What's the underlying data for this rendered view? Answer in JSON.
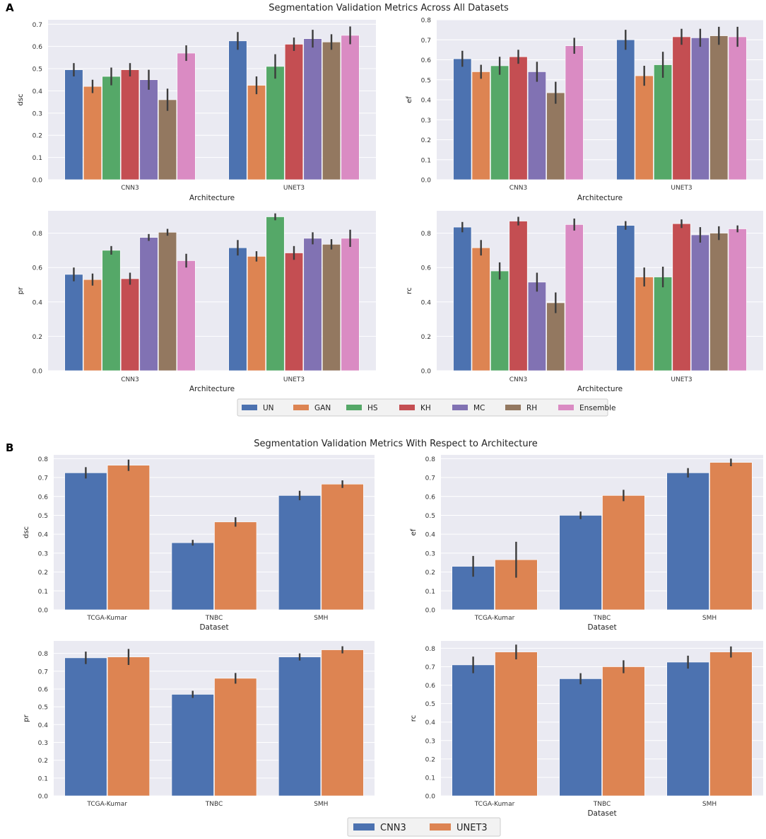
{
  "panels": {
    "a": {
      "label": "A",
      "title": "Segmentation Validation Metrics Across All Datasets"
    },
    "b": {
      "label": "B",
      "title": "Segmentation Validation Metrics With Respect to Architecture"
    }
  },
  "legend_a": {
    "entries": [
      {
        "label": "UN",
        "color": "#4c72b0"
      },
      {
        "label": "GAN",
        "color": "#dd8452"
      },
      {
        "label": "HS",
        "color": "#55a868"
      },
      {
        "label": "KH",
        "color": "#c44e52"
      },
      {
        "label": "MC",
        "color": "#8172b3"
      },
      {
        "label": "RH",
        "color": "#937860"
      },
      {
        "label": "Ensemble",
        "color": "#da8bc3"
      }
    ]
  },
  "legend_b": {
    "entries": [
      {
        "label": "CNN3",
        "color": "#4c72b0"
      },
      {
        "label": "UNET3",
        "color": "#dd8452"
      }
    ]
  },
  "chart_data": [
    {
      "id": "a1",
      "type": "bar",
      "title": "",
      "xlabel": "Architecture",
      "ylabel": "dsc",
      "ylim": [
        0,
        0.72
      ],
      "yticks": [
        0,
        0.1,
        0.2,
        0.3,
        0.4,
        0.5,
        0.6,
        0.7
      ],
      "tick_decimals": 1,
      "categories": [
        "CNN3",
        "UNET3"
      ],
      "series": [
        {
          "name": "UN",
          "values": [
            0.495,
            0.625
          ],
          "err": [
            0.03,
            0.04
          ]
        },
        {
          "name": "GAN",
          "values": [
            0.42,
            0.425
          ],
          "err": [
            0.03,
            0.04
          ]
        },
        {
          "name": "HS",
          "values": [
            0.465,
            0.51
          ],
          "err": [
            0.04,
            0.055
          ]
        },
        {
          "name": "KH",
          "values": [
            0.495,
            0.61
          ],
          "err": [
            0.03,
            0.03
          ]
        },
        {
          "name": "MC",
          "values": [
            0.45,
            0.635
          ],
          "err": [
            0.045,
            0.04
          ]
        },
        {
          "name": "RH",
          "values": [
            0.36,
            0.62
          ],
          "err": [
            0.05,
            0.035
          ]
        },
        {
          "name": "Ensemble",
          "values": [
            0.57,
            0.65
          ],
          "err": [
            0.035,
            0.04
          ]
        }
      ]
    },
    {
      "id": "a2",
      "type": "bar",
      "title": "",
      "xlabel": "Architecture",
      "ylabel": "ef",
      "ylim": [
        0,
        0.8
      ],
      "yticks": [
        0,
        0.1,
        0.2,
        0.3,
        0.4,
        0.5,
        0.6,
        0.7,
        0.8
      ],
      "tick_decimals": 1,
      "categories": [
        "CNN3",
        "UNET3"
      ],
      "series": [
        {
          "name": "UN",
          "values": [
            0.605,
            0.7
          ],
          "err": [
            0.04,
            0.05
          ]
        },
        {
          "name": "GAN",
          "values": [
            0.54,
            0.52
          ],
          "err": [
            0.035,
            0.05
          ]
        },
        {
          "name": "HS",
          "values": [
            0.57,
            0.575
          ],
          "err": [
            0.045,
            0.065
          ]
        },
        {
          "name": "KH",
          "values": [
            0.615,
            0.715
          ],
          "err": [
            0.035,
            0.04
          ]
        },
        {
          "name": "MC",
          "values": [
            0.54,
            0.71
          ],
          "err": [
            0.05,
            0.045
          ]
        },
        {
          "name": "RH",
          "values": [
            0.435,
            0.72
          ],
          "err": [
            0.055,
            0.045
          ]
        },
        {
          "name": "Ensemble",
          "values": [
            0.67,
            0.715
          ],
          "err": [
            0.04,
            0.05
          ]
        }
      ]
    },
    {
      "id": "a3",
      "type": "bar",
      "title": "",
      "xlabel": "Architecture",
      "ylabel": "pr",
      "ylim": [
        0,
        0.93
      ],
      "yticks": [
        0,
        0.2,
        0.4,
        0.6,
        0.8
      ],
      "tick_decimals": 1,
      "categories": [
        "CNN3",
        "UNET3"
      ],
      "series": [
        {
          "name": "UN",
          "values": [
            0.56,
            0.715
          ],
          "err": [
            0.04,
            0.045
          ]
        },
        {
          "name": "GAN",
          "values": [
            0.53,
            0.665
          ],
          "err": [
            0.035,
            0.03
          ]
        },
        {
          "name": "HS",
          "values": [
            0.7,
            0.895
          ],
          "err": [
            0.025,
            0.02
          ]
        },
        {
          "name": "KH",
          "values": [
            0.535,
            0.685
          ],
          "err": [
            0.035,
            0.04
          ]
        },
        {
          "name": "MC",
          "values": [
            0.775,
            0.77
          ],
          "err": [
            0.02,
            0.035
          ]
        },
        {
          "name": "RH",
          "values": [
            0.805,
            0.735
          ],
          "err": [
            0.02,
            0.03
          ]
        },
        {
          "name": "Ensemble",
          "values": [
            0.64,
            0.77
          ],
          "err": [
            0.04,
            0.05
          ]
        }
      ]
    },
    {
      "id": "a4",
      "type": "bar",
      "title": "",
      "xlabel": "Architecture",
      "ylabel": "rc",
      "ylim": [
        0,
        0.93
      ],
      "yticks": [
        0,
        0.2,
        0.4,
        0.6,
        0.8
      ],
      "tick_decimals": 1,
      "categories": [
        "CNN3",
        "UNET3"
      ],
      "series": [
        {
          "name": "UN",
          "values": [
            0.835,
            0.845
          ],
          "err": [
            0.03,
            0.025
          ]
        },
        {
          "name": "GAN",
          "values": [
            0.715,
            0.545
          ],
          "err": [
            0.045,
            0.055
          ]
        },
        {
          "name": "HS",
          "values": [
            0.58,
            0.545
          ],
          "err": [
            0.05,
            0.06
          ]
        },
        {
          "name": "KH",
          "values": [
            0.87,
            0.855
          ],
          "err": [
            0.025,
            0.025
          ]
        },
        {
          "name": "MC",
          "values": [
            0.515,
            0.79
          ],
          "err": [
            0.055,
            0.045
          ]
        },
        {
          "name": "RH",
          "values": [
            0.395,
            0.8
          ],
          "err": [
            0.06,
            0.04
          ]
        },
        {
          "name": "Ensemble",
          "values": [
            0.85,
            0.825
          ],
          "err": [
            0.035,
            0.02
          ]
        }
      ]
    },
    {
      "id": "b1",
      "type": "bar",
      "title": "",
      "xlabel": "Dataset",
      "ylabel": "dsc",
      "ylim": [
        0,
        0.82
      ],
      "yticks": [
        0,
        0.1,
        0.2,
        0.3,
        0.4,
        0.5,
        0.6,
        0.7,
        0.8
      ],
      "tick_decimals": 1,
      "categories": [
        "TCGA-Kumar",
        "TNBC",
        "SMH"
      ],
      "series": [
        {
          "name": "CNN3",
          "values": [
            0.725,
            0.355,
            0.605
          ],
          "err": [
            0.03,
            0.015,
            0.025
          ]
        },
        {
          "name": "UNET3",
          "values": [
            0.765,
            0.465,
            0.665
          ],
          "err": [
            0.03,
            0.025,
            0.02
          ]
        }
      ]
    },
    {
      "id": "b2",
      "type": "bar",
      "title": "",
      "xlabel": "Dataset",
      "ylabel": "ef",
      "ylim": [
        0,
        0.82
      ],
      "yticks": [
        0,
        0.1,
        0.2,
        0.3,
        0.4,
        0.5,
        0.6,
        0.7,
        0.8
      ],
      "tick_decimals": 1,
      "categories": [
        "TCGA-Kumar",
        "TNBC",
        "SMH"
      ],
      "series": [
        {
          "name": "CNN3",
          "values": [
            0.23,
            0.5,
            0.725
          ],
          "err": [
            0.055,
            0.02,
            0.025
          ]
        },
        {
          "name": "UNET3",
          "values": [
            0.265,
            0.605,
            0.78
          ],
          "err": [
            0.095,
            0.03,
            0.02
          ]
        }
      ]
    },
    {
      "id": "b3",
      "type": "bar",
      "title": "",
      "xlabel": "",
      "ylabel": "pr",
      "ylim": [
        0,
        0.87
      ],
      "yticks": [
        0,
        0.1,
        0.2,
        0.3,
        0.4,
        0.5,
        0.6,
        0.7,
        0.8
      ],
      "tick_decimals": 1,
      "categories": [
        "TCGA-Kumar",
        "TNBC",
        "SMH"
      ],
      "series": [
        {
          "name": "CNN3",
          "values": [
            0.775,
            0.57,
            0.78
          ],
          "err": [
            0.035,
            0.02,
            0.02
          ]
        },
        {
          "name": "UNET3",
          "values": [
            0.78,
            0.66,
            0.82
          ],
          "err": [
            0.045,
            0.03,
            0.02
          ]
        }
      ]
    },
    {
      "id": "b4",
      "type": "bar",
      "title": "",
      "xlabel": "Dataset",
      "ylabel": "rc",
      "ylim": [
        0,
        0.84
      ],
      "yticks": [
        0,
        0.1,
        0.2,
        0.3,
        0.4,
        0.5,
        0.6,
        0.7,
        0.8
      ],
      "tick_decimals": 1,
      "categories": [
        "TCGA-Kumar",
        "TNBC",
        "SMH"
      ],
      "series": [
        {
          "name": "CNN3",
          "values": [
            0.71,
            0.635,
            0.725
          ],
          "err": [
            0.045,
            0.03,
            0.035
          ]
        },
        {
          "name": "UNET3",
          "values": [
            0.78,
            0.7,
            0.78
          ],
          "err": [
            0.04,
            0.035,
            0.03
          ]
        }
      ]
    }
  ]
}
